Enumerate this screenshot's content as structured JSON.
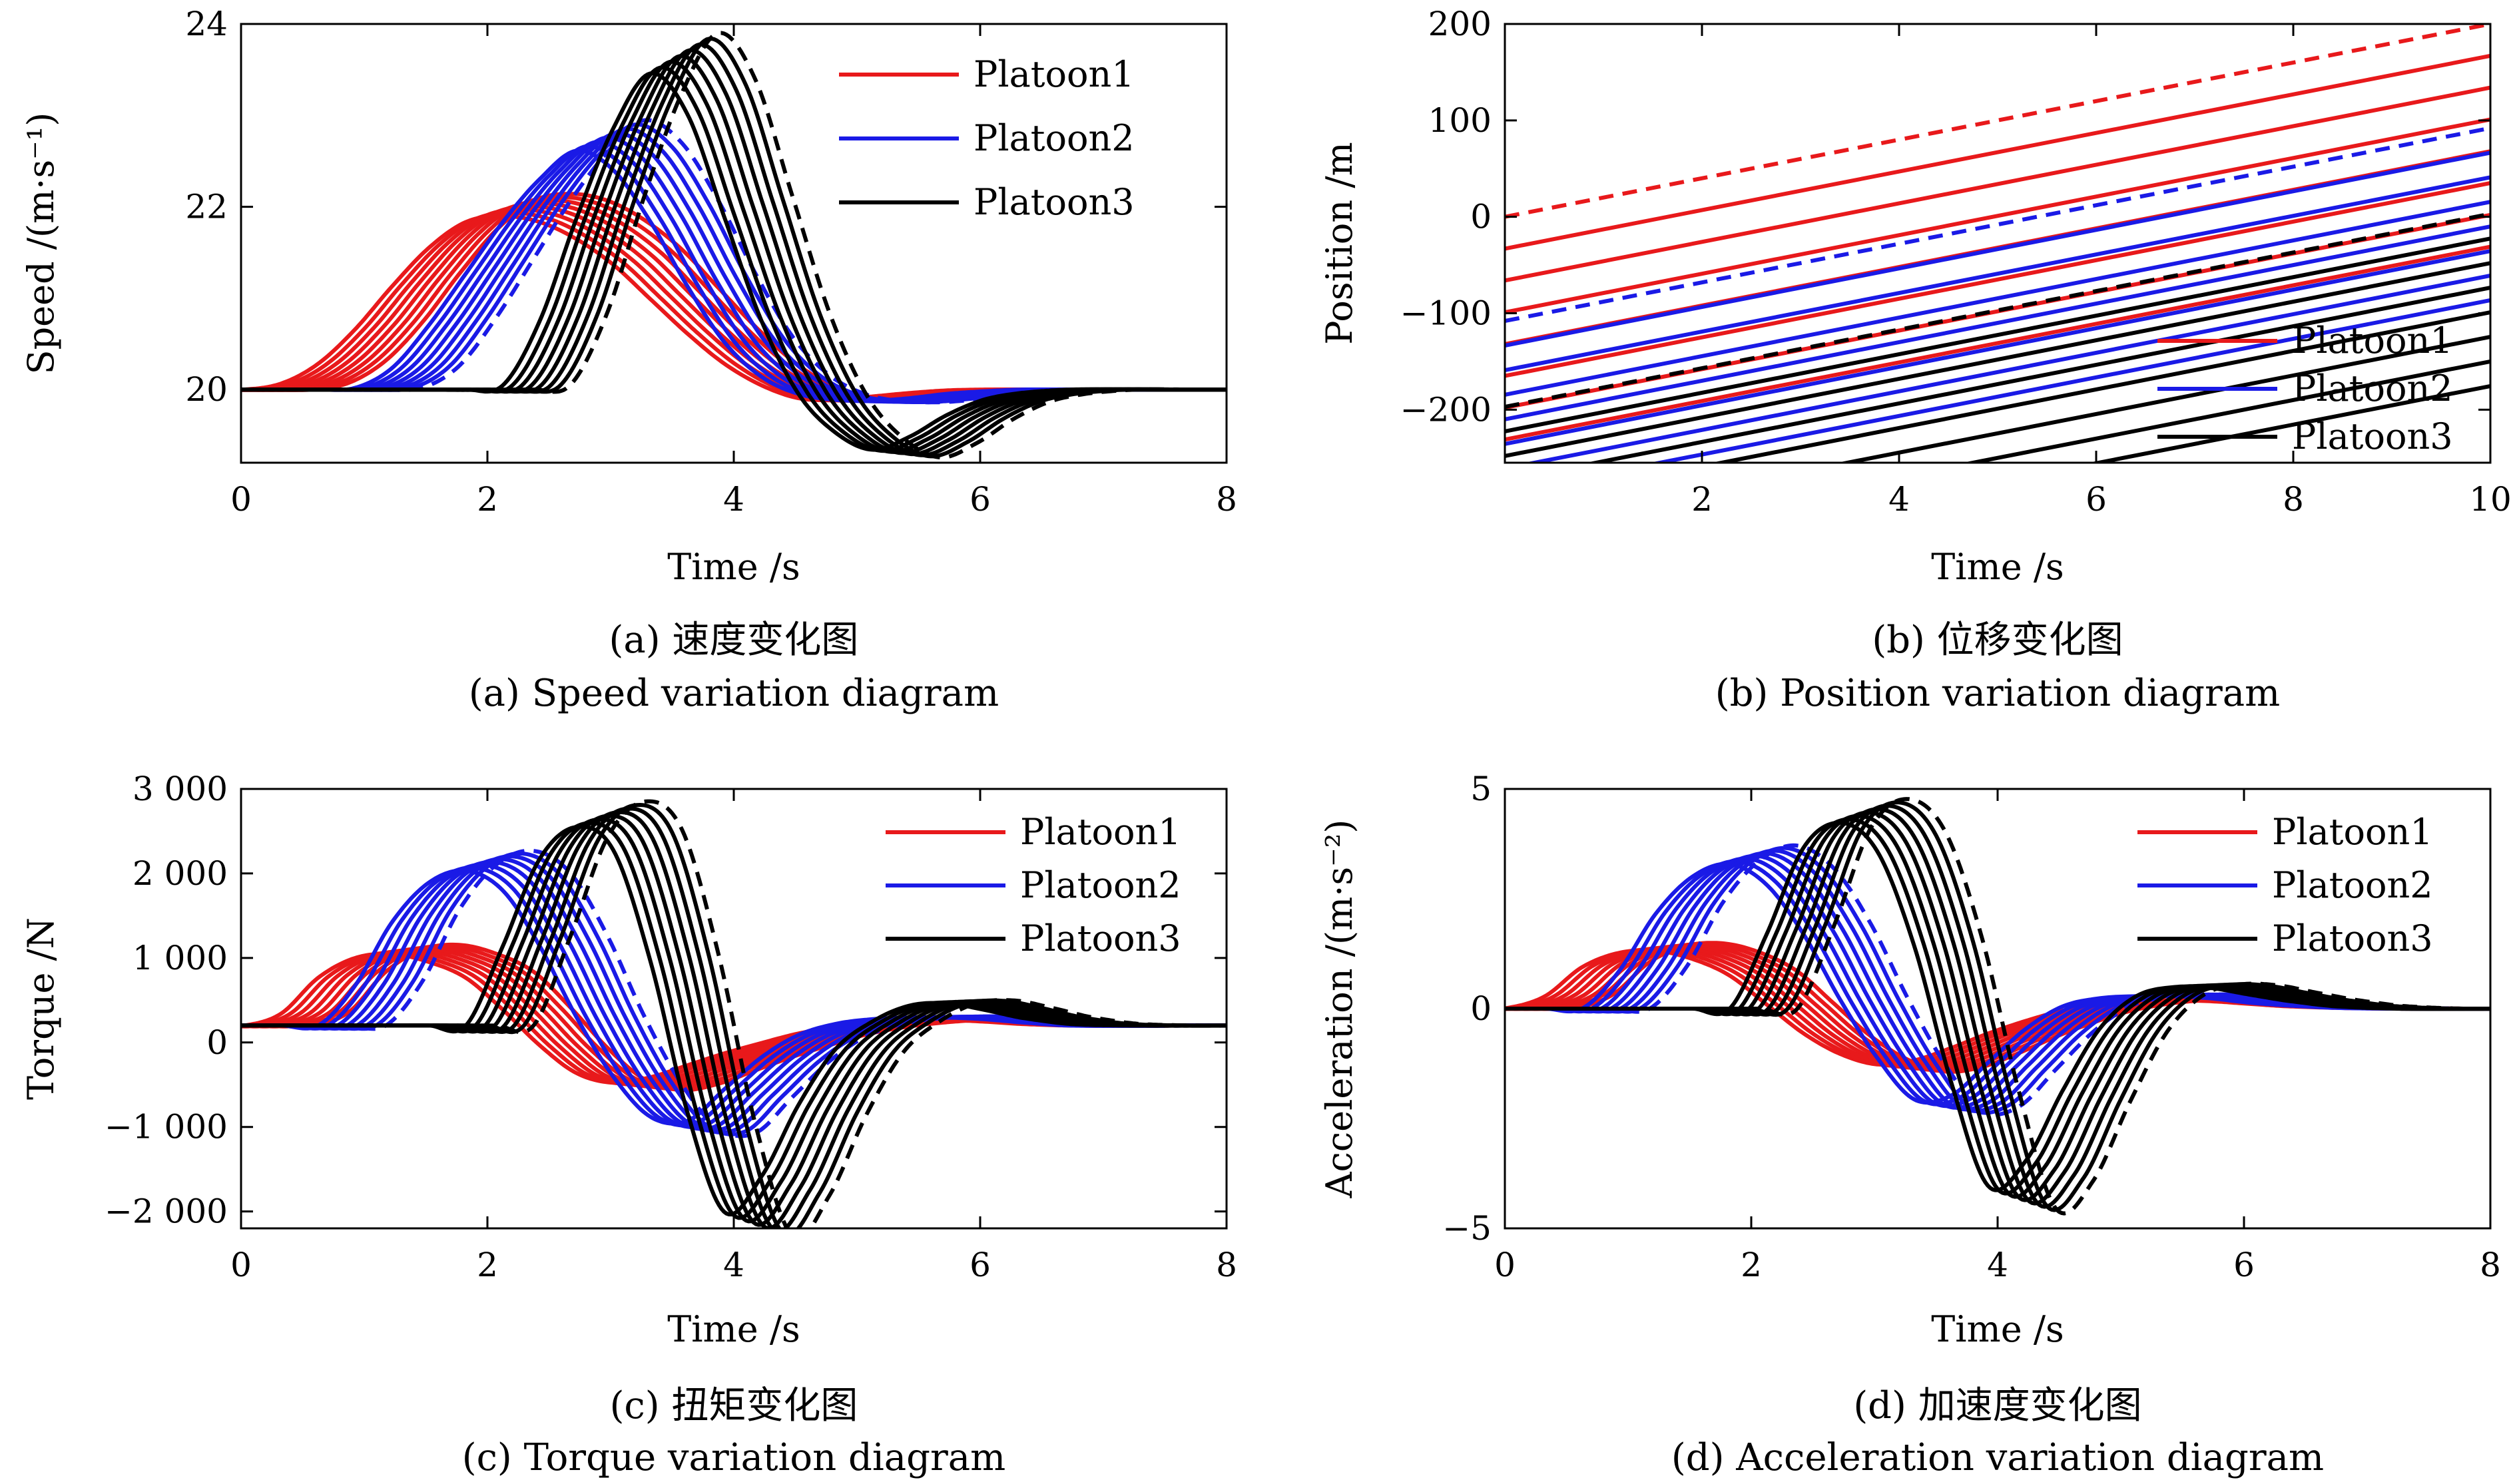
{
  "chart_data": [
    {
      "id": "a",
      "type": "line",
      "caption_cn": "(a) 速度变化图",
      "caption_en": "(a) Speed variation diagram",
      "xlabel": "Time /s",
      "ylabel": "Speed /(m·s⁻¹)",
      "xlim": [
        0,
        8
      ],
      "ylim": [
        19.2,
        24
      ],
      "xticks": [
        0,
        2,
        4,
        6,
        8
      ],
      "xtick_labels": [
        "0",
        "2",
        "4",
        "6",
        "8"
      ],
      "yticks": [
        20,
        22,
        24
      ],
      "ytick_labels": [
        "20",
        "22",
        "24"
      ],
      "legend_position": "top-right",
      "grid": false,
      "vehicles_per_platoon": 8,
      "series": [
        {
          "name": "Platoon1",
          "color": "#e8191b",
          "x": [
            0,
            0.3,
            0.6,
            0.9,
            1.2,
            1.5,
            1.8,
            2.1,
            2.4,
            2.7,
            3.0,
            3.3,
            3.6,
            3.9,
            4.2,
            4.5,
            4.8,
            5.1,
            5.4,
            5.7,
            6.0,
            6.3,
            6.6,
            7.0,
            7.5,
            8.0
          ],
          "values": [
            20.0,
            20.0,
            20.07,
            20.3,
            20.7,
            21.2,
            21.65,
            21.95,
            22.02,
            21.95,
            21.75,
            21.45,
            21.05,
            20.65,
            20.3,
            20.05,
            19.9,
            19.88,
            19.92,
            19.96,
            19.99,
            20.0,
            20.0,
            20.0,
            20.0,
            20.0
          ]
        },
        {
          "name": "Platoon2",
          "color": "#1a1ae6",
          "x": [
            0,
            0.3,
            0.6,
            0.9,
            1.2,
            1.5,
            1.8,
            2.1,
            2.4,
            2.7,
            3.0,
            3.3,
            3.6,
            3.9,
            4.2,
            4.5,
            4.8,
            5.1,
            5.4,
            5.7,
            6.0,
            6.3,
            6.6,
            7.0,
            7.5,
            8.0
          ],
          "values": [
            20.0,
            20.0,
            20.0,
            20.0,
            20.02,
            20.25,
            20.75,
            21.35,
            21.95,
            22.45,
            22.78,
            22.55,
            21.95,
            21.2,
            20.55,
            20.15,
            19.95,
            19.88,
            19.87,
            19.9,
            19.95,
            19.98,
            20.0,
            20.0,
            20.0,
            20.0
          ]
        },
        {
          "name": "Platoon3",
          "color": "#000000",
          "x": [
            0,
            0.3,
            0.6,
            0.9,
            1.2,
            1.5,
            1.8,
            2.1,
            2.4,
            2.7,
            3.0,
            3.3,
            3.6,
            3.9,
            4.2,
            4.5,
            4.8,
            5.1,
            5.4,
            5.7,
            6.0,
            6.3,
            6.6,
            7.0,
            7.5,
            8.0
          ],
          "values": [
            20.0,
            20.0,
            20.0,
            20.0,
            20.0,
            20.0,
            20.0,
            20.0,
            20.05,
            20.8,
            22.0,
            23.05,
            23.68,
            23.2,
            22.0,
            20.8,
            19.95,
            19.5,
            19.3,
            19.45,
            19.7,
            19.88,
            19.96,
            20.0,
            20.0,
            20.0
          ]
        }
      ],
      "lead_vehicle_dashed": true
    },
    {
      "id": "b",
      "type": "line",
      "caption_cn": "(b) 位移变化图",
      "caption_en": "(b) Position variation diagram",
      "xlabel": "Time /s",
      "ylabel": "Position /m",
      "xlim": [
        0,
        10
      ],
      "ylim": [
        -255,
        200
      ],
      "xticks": [
        2,
        4,
        6,
        8,
        10
      ],
      "xtick_labels": [
        "2",
        "4",
        "6",
        "8",
        "10"
      ],
      "yticks": [
        -200,
        -100,
        0,
        100,
        200
      ],
      "ytick_labels": [
        "−200",
        "−100",
        "0",
        "100",
        "200"
      ],
      "legend_position": "bottom-right",
      "grid": false,
      "vehicles_per_platoon": 8,
      "series": [
        {
          "name": "Platoon1",
          "color": "#e8191b",
          "x": [
            0,
            10
          ],
          "values": [
            0,
            200
          ],
          "spacing": -11
        },
        {
          "name": "Platoon2",
          "color": "#1a1ae6",
          "x": [
            0,
            10
          ],
          "values": [
            -108,
            92
          ],
          "spacing": -8.5
        },
        {
          "name": "Platoon3",
          "color": "#000000",
          "x": [
            0,
            10
          ],
          "values": [
            -197,
            3
          ],
          "spacing": -8.5
        }
      ],
      "lead_vehicle_dashed": true
    },
    {
      "id": "c",
      "type": "line",
      "caption_cn": "(c) 扭矩变化图",
      "caption_en": "(c) Torque variation diagram",
      "xlabel": "Time /s",
      "ylabel": "Torque /N",
      "xlim": [
        0,
        8
      ],
      "ylim": [
        -2200,
        3000
      ],
      "xticks": [
        0,
        2,
        4,
        6,
        8
      ],
      "xtick_labels": [
        "0",
        "2",
        "4",
        "6",
        "8"
      ],
      "yticks": [
        -2000,
        -1000,
        0,
        1000,
        2000,
        3000
      ],
      "ytick_labels": [
        "−2 000",
        "−1 000",
        "0",
        "1 000",
        "2 000",
        "3 000"
      ],
      "legend_position": "top-right",
      "grid": false,
      "vehicles_per_platoon": 8,
      "series": [
        {
          "name": "Platoon1",
          "color": "#e8191b",
          "x": [
            0.1,
            0.3,
            0.6,
            0.9,
            1.2,
            1.5,
            1.8,
            2.1,
            2.4,
            2.7,
            3.0,
            3.3,
            3.6,
            3.9,
            4.2,
            4.5,
            4.8,
            5.1,
            5.4,
            5.7,
            6.0,
            6.3,
            6.6,
            7.0,
            7.5,
            8.0
          ],
          "values": [
            200,
            200,
            350,
            800,
            1050,
            1100,
            1000,
            800,
            400,
            -50,
            -400,
            -520,
            -450,
            -300,
            -150,
            -20,
            100,
            180,
            230,
            260,
            270,
            250,
            220,
            200,
            200,
            200
          ]
        },
        {
          "name": "Platoon2",
          "color": "#1a1ae6",
          "x": [
            0.1,
            0.3,
            0.6,
            0.9,
            1.2,
            1.5,
            1.8,
            2.1,
            2.4,
            2.7,
            3.0,
            3.3,
            3.6,
            3.9,
            4.2,
            4.5,
            4.8,
            5.1,
            5.4,
            5.7,
            6.0,
            6.3,
            6.6,
            7.0,
            7.5,
            8.0
          ],
          "values": [
            200,
            200,
            200,
            200,
            700,
            1500,
            2000,
            2150,
            1900,
            1200,
            300,
            -450,
            -950,
            -1000,
            -600,
            -200,
            80,
            220,
            280,
            300,
            300,
            280,
            240,
            200,
            200,
            200
          ]
        },
        {
          "name": "Platoon3",
          "color": "#000000",
          "x": [
            0.1,
            0.3,
            0.6,
            0.9,
            1.2,
            1.5,
            1.8,
            2.1,
            2.4,
            2.7,
            3.0,
            3.3,
            3.6,
            3.9,
            4.2,
            4.5,
            4.8,
            5.1,
            5.4,
            5.7,
            6.0,
            6.3,
            6.6,
            7.0,
            7.5,
            8.0
          ],
          "values": [
            200,
            200,
            200,
            200,
            200,
            200,
            200,
            200,
            1200,
            2300,
            2700,
            2400,
            1000,
            -900,
            -2150,
            -1700,
            -800,
            -100,
            250,
            450,
            480,
            400,
            300,
            220,
            200,
            200
          ]
        }
      ],
      "lead_vehicle_dashed": true
    },
    {
      "id": "d",
      "type": "line",
      "caption_cn": "(d) 加速度变化图",
      "caption_en": "(d) Acceleration variation diagram",
      "xlabel": "Time /s",
      "ylabel": "Acceleration /(m·s⁻²)",
      "xlim": [
        0,
        8
      ],
      "ylim": [
        -5,
        5
      ],
      "xticks": [
        0,
        2,
        4,
        6,
        8
      ],
      "xtick_labels": [
        "0",
        "2",
        "4",
        "6",
        "8"
      ],
      "yticks": [
        -5,
        0,
        5
      ],
      "ytick_labels": [
        "−5",
        "0",
        "5"
      ],
      "legend_position": "top-right",
      "grid": false,
      "vehicles_per_platoon": 8,
      "series": [
        {
          "name": "Platoon1",
          "color": "#e8191b",
          "x": [
            0.1,
            0.3,
            0.6,
            0.9,
            1.2,
            1.5,
            1.8,
            2.1,
            2.4,
            2.7,
            3.0,
            3.3,
            3.6,
            3.9,
            4.2,
            4.5,
            4.8,
            5.1,
            5.4,
            5.7,
            6.0,
            6.3,
            6.6,
            7.0,
            7.5,
            8.0
          ],
          "values": [
            0,
            0.02,
            0.3,
            1.0,
            1.35,
            1.4,
            1.2,
            0.8,
            0.1,
            -0.6,
            -1.1,
            -1.35,
            -1.25,
            -0.95,
            -0.6,
            -0.3,
            -0.05,
            0.1,
            0.18,
            0.2,
            0.18,
            0.12,
            0.06,
            0.02,
            0,
            0
          ]
        },
        {
          "name": "Platoon2",
          "color": "#1a1ae6",
          "x": [
            0.1,
            0.3,
            0.6,
            0.9,
            1.2,
            1.5,
            1.8,
            2.1,
            2.4,
            2.7,
            3.0,
            3.3,
            3.6,
            3.9,
            4.2,
            4.5,
            4.8,
            5.1,
            5.4,
            5.7,
            6.0,
            6.3,
            6.6,
            7.0,
            7.5,
            8.0
          ],
          "values": [
            0,
            0,
            0,
            0,
            0.9,
            2.3,
            3.2,
            3.5,
            3.0,
            1.8,
            0.2,
            -1.2,
            -2.2,
            -2.1,
            -1.3,
            -0.5,
            0.05,
            0.25,
            0.3,
            0.3,
            0.25,
            0.15,
            0.08,
            0.02,
            0,
            0
          ]
        },
        {
          "name": "Platoon3",
          "color": "#000000",
          "x": [
            0.1,
            0.3,
            0.6,
            0.9,
            1.2,
            1.5,
            1.8,
            2.1,
            2.4,
            2.7,
            3.0,
            3.3,
            3.6,
            3.9,
            4.2,
            4.5,
            4.8,
            5.1,
            5.4,
            5.7,
            6.0,
            6.3,
            6.6,
            7.0,
            7.5,
            8.0
          ],
          "values": [
            0,
            0,
            0,
            0,
            0,
            0,
            0,
            0,
            1.8,
            3.9,
            4.5,
            3.8,
            1.5,
            -1.8,
            -4.3,
            -3.7,
            -2.0,
            -0.5,
            0.3,
            0.52,
            0.5,
            0.35,
            0.2,
            0.06,
            0,
            0
          ]
        }
      ],
      "lead_vehicle_dashed": true
    }
  ]
}
